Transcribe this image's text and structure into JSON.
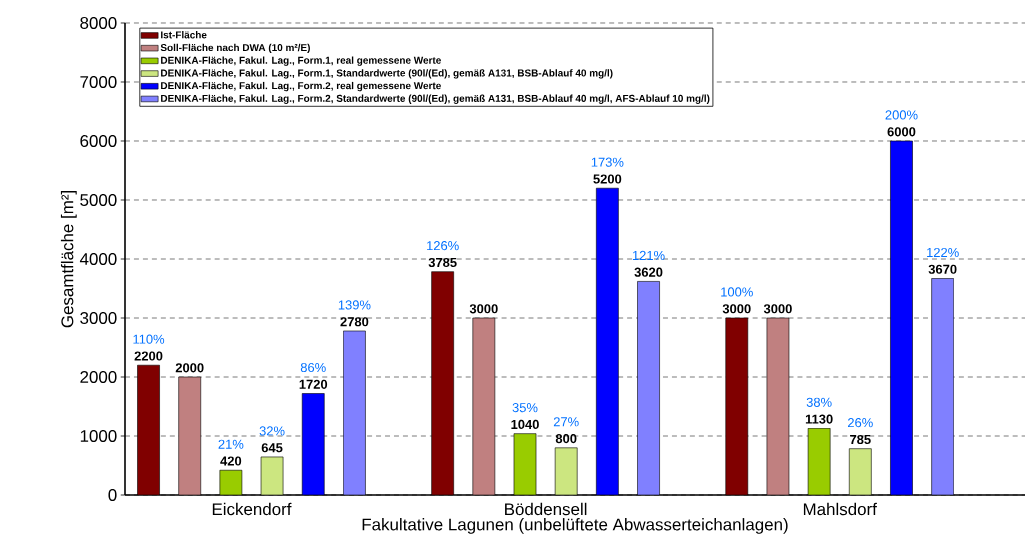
{
  "chart_data": {
    "type": "bar",
    "xlabel": "Fakultative Lagunen (unbelüftete Abwasserteichanlagen)",
    "ylabel": "Gesamtfläche [m²]",
    "categories": [
      "Eickendorf",
      "Böddensell",
      "Mahlsdorf"
    ],
    "series": [
      {
        "name": "Ist-Fläche",
        "color": "#800000",
        "values": [
          2200,
          3785,
          3000
        ]
      },
      {
        "name": "Soll-Fläche nach DWA (10 m²/E)",
        "color": "#c08080",
        "values": [
          2000,
          3000,
          3000
        ]
      },
      {
        "name": "DENIKA-Fläche, Fakul. Lag., Form.1, real gemessene Werte",
        "color": "#99cc00",
        "values": [
          420,
          1040,
          1130
        ]
      },
      {
        "name": "DENIKA-Fläche, Fakul. Lag., Form.1, Standardwerte (90l/(Ed), gemäß A131, BSB-Ablauf 40 mg/l)",
        "color": "#cce680",
        "values": [
          645,
          800,
          785
        ]
      },
      {
        "name": "DENIKA-Fläche, Fakul. Lag., Form.2, real gemessene Werte",
        "color": "#0000ff",
        "values": [
          1720,
          5200,
          6000
        ]
      },
      {
        "name": "DENIKA-Fläche, Fakul. Lag., Form.2, Standardwerte (90l/(Ed), gemäß A131, BSB-Ablauf 40 mg/l, AFS-Ablauf 10 mg/l)",
        "color": "#8080ff",
        "values": [
          2780,
          3620,
          3670
        ]
      }
    ],
    "ylim": [
      0,
      8000
    ],
    "yticks": [
      0,
      1000,
      2000,
      3000,
      4000,
      5000,
      6000,
      7000,
      8000
    ],
    "grid": "y",
    "legend": "top left",
    "data_labels": true,
    "annotations": [
      "110%",
      "21%",
      "32%",
      "86%",
      "139%",
      "126%",
      "35%",
      "27%",
      "173%",
      "121%",
      "100%",
      "38%",
      "26%",
      "200%",
      "122%"
    ]
  }
}
